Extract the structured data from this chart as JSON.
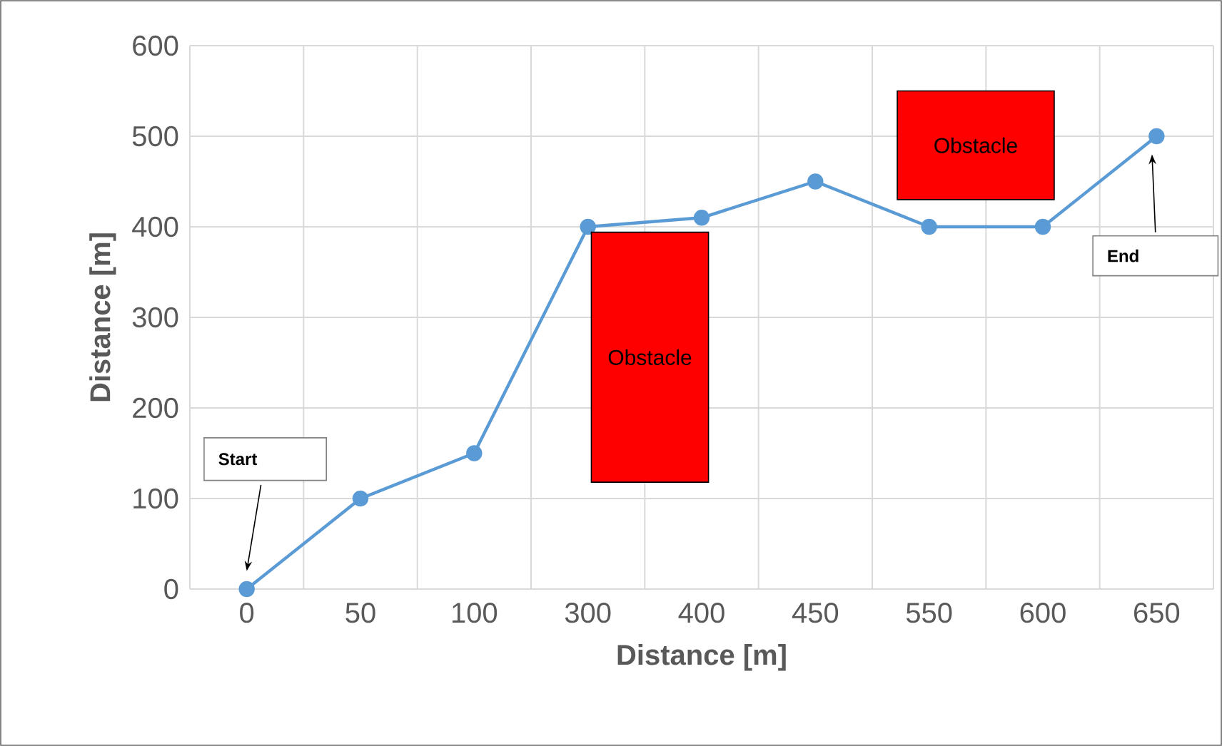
{
  "chart_data": {
    "type": "line",
    "xlabel": "Distance [m]",
    "ylabel": "Distance [m]",
    "categories": [
      "0",
      "50",
      "100",
      "300",
      "400",
      "450",
      "550",
      "600",
      "650"
    ],
    "series": [
      {
        "color": "#5b9bd5",
        "values": [
          0,
          100,
          150,
          400,
          410,
          450,
          400,
          400,
          500
        ]
      }
    ],
    "ylim": [
      0,
      600
    ],
    "yticks": [
      0,
      100,
      200,
      300,
      400,
      500,
      600
    ],
    "grid": true,
    "marker": "circle",
    "line_style": "solid",
    "annotations": [
      "Start",
      "End",
      "Obstacle",
      "Obstacle"
    ]
  }
}
